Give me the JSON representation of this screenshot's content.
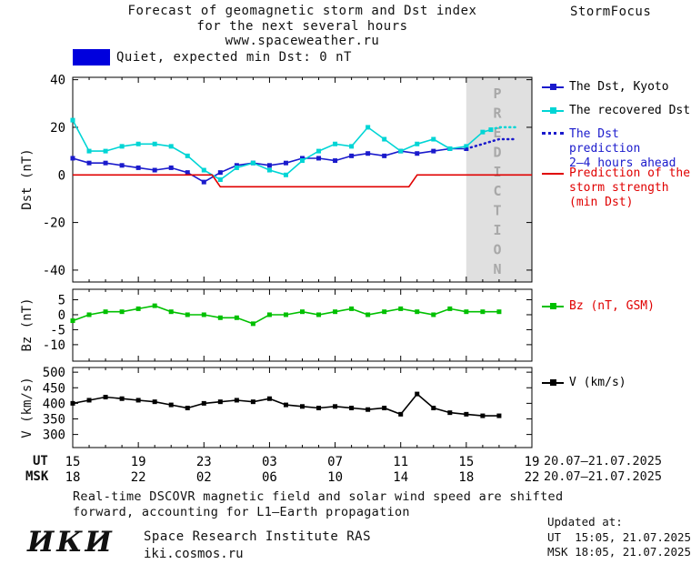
{
  "header": {
    "title_line1": "Forecast of geomagnetic storm and Dst index",
    "title_line2": "for the next several hours",
    "site": "www.spaceweather.ru",
    "brand": "StormFocus"
  },
  "status": {
    "label": "Quiet, expected min Dst: 0 nT",
    "swatch_color": "#0000dd"
  },
  "legend": {
    "dst_kyoto": {
      "label": "The Dst, Kyoto",
      "color": "#000000"
    },
    "recovered": {
      "label": "The recovered Dst",
      "color": "#000000"
    },
    "prediction": {
      "lines": [
        "The Dst prediction",
        "2–4 hours ahead"
      ],
      "color": "#1a1acc"
    },
    "storm": {
      "lines": [
        "Prediction of the",
        "storm strength",
        "(min Dst)"
      ],
      "color": "#e00000"
    },
    "bz": {
      "label": "Bz (nT, GSM)",
      "color": "#e00000"
    },
    "v": {
      "label": "V (km/s)",
      "color": "#000000"
    }
  },
  "xaxis": {
    "ut_label": "UT",
    "msk_label": "MSK",
    "ut_date": "20.07–21.07.2025",
    "msk_date": "20.07–21.07.2025"
  },
  "footnote": {
    "line1": "Real-time DSCOVR magnetic field and solar wind speed are shifted",
    "line2": "forward, accounting for L1–Earth propagation"
  },
  "footer": {
    "logo": "ИКИ",
    "institute": "Space Research Institute RAS",
    "site": "iki.cosmos.ru",
    "updated_label": "Updated at:",
    "updated_ut": "UT  15:05, 21.07.2025",
    "updated_msk": "MSK 18:05, 21.07.2025"
  },
  "chart_data": {
    "type": "line",
    "title": "Forecast of geomagnetic storm and Dst index for the next several hours",
    "x_unit": "hours from 15:00 UT 20.07.2025",
    "x_range": [
      0,
      28
    ],
    "xticks": {
      "hours": [
        0,
        4,
        8,
        12,
        16,
        20,
        24,
        28
      ],
      "ut": [
        "15",
        "19",
        "23",
        "03",
        "07",
        "11",
        "15",
        "19"
      ],
      "msk": [
        "18",
        "22",
        "02",
        "06",
        "10",
        "14",
        "18",
        "22"
      ]
    },
    "prediction_region": {
      "x_start": 24,
      "x_end": 28,
      "label": "PREDICTION",
      "fill": "#e0e0e0",
      "text_color": "#a8a8a8"
    },
    "panels": [
      {
        "ylabel": "Dst (nT)",
        "ylim": [
          -45,
          41
        ],
        "yticks": [
          40,
          20,
          0,
          -20,
          -40
        ],
        "series": [
          {
            "name": "The Dst, Kyoto",
            "color": "#1a1acc",
            "marker": true,
            "x": [
              0,
              1,
              2,
              3,
              4,
              5,
              6,
              7,
              8,
              9,
              10,
              11,
              12,
              13,
              14,
              15,
              16,
              17,
              18,
              19,
              20,
              21,
              22,
              23,
              24
            ],
            "y": [
              7,
              5,
              5,
              4,
              3,
              2,
              3,
              1,
              -3,
              1,
              4,
              5,
              4,
              5,
              7,
              7,
              6,
              8,
              9,
              8,
              10,
              9,
              10,
              11,
              11
            ]
          },
          {
            "name": "The recovered Dst",
            "color": "#00d5d5",
            "marker": true,
            "x": [
              0,
              1,
              2,
              3,
              4,
              5,
              6,
              7,
              8,
              9,
              10,
              11,
              12,
              13,
              14,
              15,
              16,
              17,
              18,
              19,
              20,
              21,
              22,
              23,
              24,
              25,
              25.5
            ],
            "y": [
              23,
              10,
              10,
              12,
              13,
              13,
              12,
              8,
              2,
              -2,
              3,
              5,
              2,
              0,
              6,
              10,
              13,
              12,
              20,
              15,
              10,
              13,
              15,
              11,
              12,
              18,
              19
            ]
          },
          {
            "name": "The Dst prediction 2-4 hours ahead",
            "color": "#1a1acc",
            "marker": false,
            "dotted": true,
            "x": [
              24,
              24.5,
              25,
              25.5,
              26,
              26.5,
              27
            ],
            "y": [
              11,
              12,
              13,
              14,
              15,
              15,
              15
            ]
          },
          {
            "name": "Prediction of the storm strength (min Dst)",
            "color": "#e00000",
            "marker": false,
            "x": [
              0,
              8.5,
              9,
              20.5,
              21,
              28
            ],
            "y": [
              0,
              0,
              -5,
              -5,
              0,
              0
            ]
          },
          {
            "name": "The recovered Dst prediction",
            "color": "#00d5d5",
            "marker": false,
            "dotted": true,
            "x": [
              25.5,
              26,
              26.5,
              27
            ],
            "y": [
              19,
              20,
              20,
              20
            ]
          }
        ]
      },
      {
        "ylabel": "Bz (nT)",
        "ylim": [
          -15.5,
          8.5
        ],
        "yticks": [
          5,
          0,
          -5,
          -10
        ],
        "series": [
          {
            "name": "Bz (nT, GSM)",
            "color": "#00c000",
            "marker": true,
            "x": [
              0,
              1,
              2,
              3,
              4,
              5,
              6,
              7,
              8,
              9,
              10,
              11,
              12,
              13,
              14,
              15,
              16,
              17,
              18,
              19,
              20,
              21,
              22,
              23,
              24,
              25,
              26
            ],
            "y": [
              -2,
              0,
              1,
              1,
              2,
              3,
              1,
              0,
              0,
              -1,
              -1,
              -3,
              0,
              0,
              1,
              0,
              1,
              2,
              0,
              1,
              2,
              1,
              0,
              2,
              1,
              1,
              1
            ]
          }
        ]
      },
      {
        "ylabel": "V (km/s)",
        "ylim": [
          258,
          515
        ],
        "yticks": [
          500,
          450,
          400,
          350,
          300
        ],
        "series": [
          {
            "name": "V (km/s)",
            "color": "#000000",
            "marker": true,
            "x": [
              0,
              1,
              2,
              3,
              4,
              5,
              6,
              7,
              8,
              9,
              10,
              11,
              12,
              13,
              14,
              15,
              16,
              17,
              18,
              19,
              20,
              21,
              22,
              23,
              24,
              25,
              26
            ],
            "y": [
              400,
              410,
              420,
              415,
              410,
              405,
              395,
              385,
              400,
              405,
              410,
              405,
              415,
              395,
              390,
              385,
              390,
              385,
              380,
              385,
              365,
              430,
              385,
              370,
              365,
              360,
              360
            ]
          }
        ]
      }
    ]
  }
}
